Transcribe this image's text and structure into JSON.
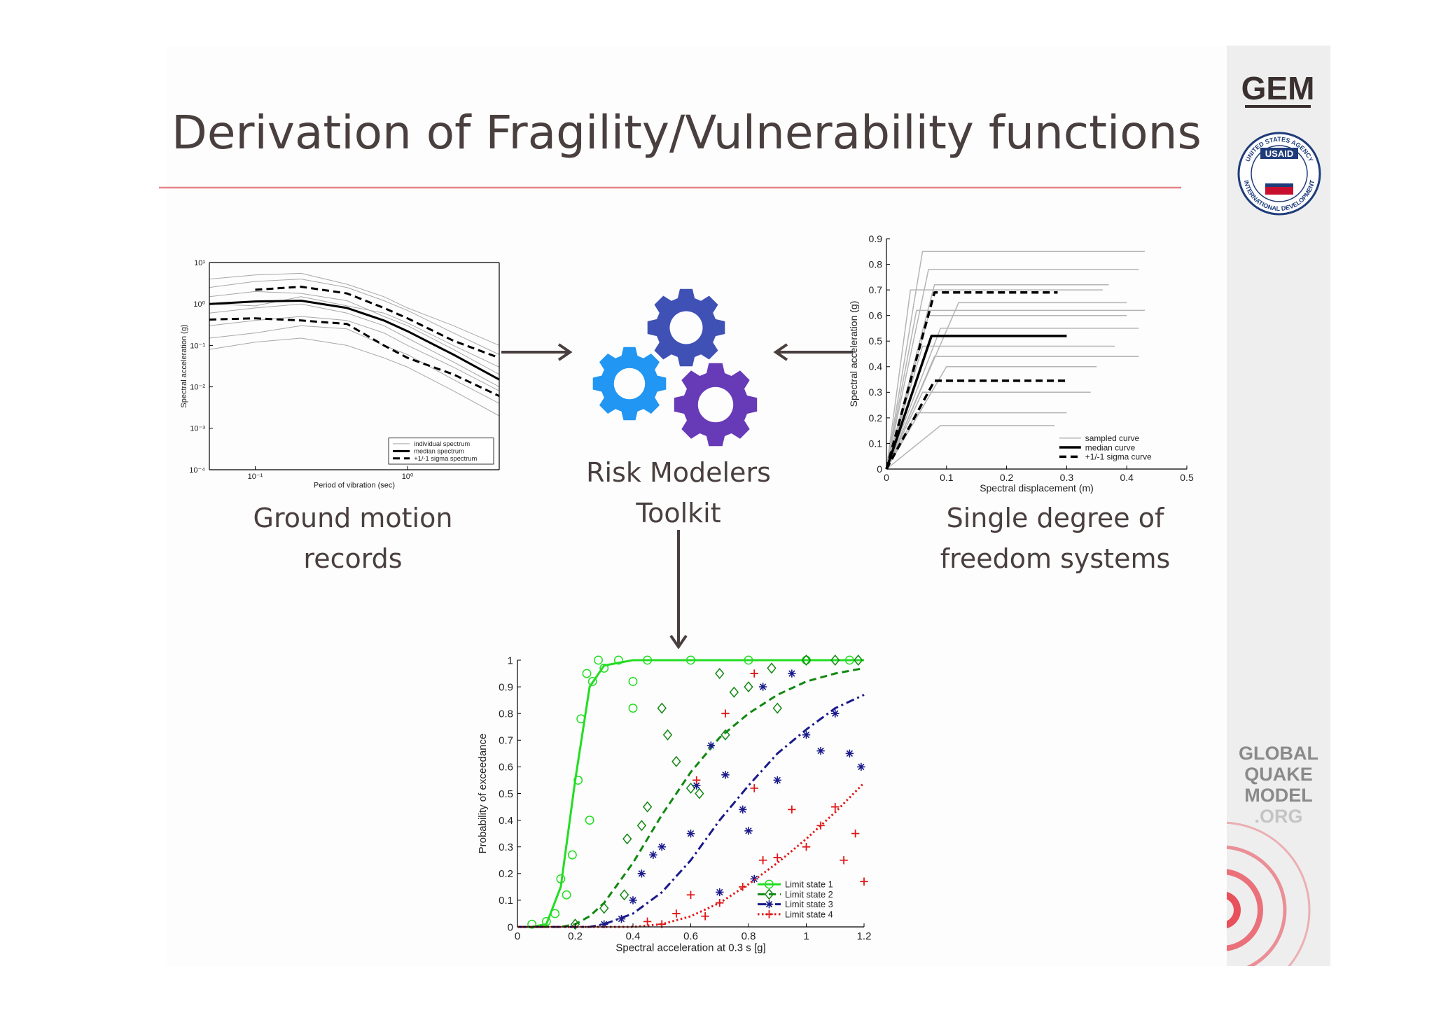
{
  "header": {
    "title": "Derivation of Fragility/Vulnerability functions"
  },
  "sidebar": {
    "logo": "GEM",
    "usaid_top": "UNITED STATES AGENCY",
    "usaid_name": "USAID",
    "usaid_bottom": "INTERNATIONAL DEVELOPMENT",
    "org_lines": [
      "GLOBAL",
      "QUAKE",
      "MODEL",
      ".ORG"
    ]
  },
  "panels": {
    "ground_motion": [
      "Ground motion",
      "records"
    ],
    "toolkit": [
      "Risk Modelers",
      "Toolkit"
    ],
    "sdof": [
      "Single degree of",
      "freedom systems"
    ]
  },
  "chart_data": [
    {
      "type": "line",
      "xscale": "log",
      "yscale": "log",
      "box": true,
      "legend": "lower right",
      "x_label": "Period of vibration (sec)",
      "y_label": "Spectral acceleration (g)",
      "xlim": [
        0.05,
        4
      ],
      "ylim": [
        0.0001,
        10
      ],
      "xticks": [
        {
          "value": 0.1,
          "label": "10⁻¹"
        },
        {
          "value": 1,
          "label": "10⁰"
        }
      ],
      "yticks": [
        {
          "value": 0.0001,
          "label": "10⁻⁴"
        },
        {
          "value": 0.001,
          "label": "10⁻³"
        },
        {
          "value": 0.01,
          "label": "10⁻²"
        },
        {
          "value": 0.1,
          "label": "10⁻¹"
        },
        {
          "value": 1,
          "label": "10⁰"
        },
        {
          "value": 10,
          "label": "10¹"
        }
      ],
      "x": [
        0.05,
        0.1,
        0.2,
        0.4,
        0.7,
        1,
        2,
        4
      ],
      "series": [
        {
          "name": "individual spectrum",
          "color": "#a8a8a8",
          "dash": "solid",
          "linewidth": 1,
          "values": [
            2.5,
            3.5,
            4,
            2.5,
            1.2,
            0.7,
            0.2,
            0.06
          ]
        },
        {
          "name": "individual spectrum",
          "color": "#a8a8a8",
          "dash": "solid",
          "linewidth": 1,
          "values": [
            0.3,
            0.4,
            0.5,
            0.4,
            0.2,
            0.1,
            0.03,
            0.008
          ]
        },
        {
          "name": "individual spectrum",
          "color": "#a8a8a8",
          "dash": "solid",
          "linewidth": 1,
          "values": [
            1.5,
            2,
            1.8,
            1.2,
            0.5,
            0.3,
            0.08,
            0.02
          ]
        },
        {
          "name": "individual spectrum",
          "color": "#a8a8a8",
          "dash": "solid",
          "linewidth": 1,
          "values": [
            0.08,
            0.12,
            0.15,
            0.1,
            0.05,
            0.03,
            0.008,
            0.002
          ]
        },
        {
          "name": "individual spectrum",
          "color": "#a8a8a8",
          "dash": "solid",
          "linewidth": 1,
          "values": [
            0.6,
            0.8,
            1.0,
            0.6,
            0.3,
            0.15,
            0.04,
            0.01
          ]
        },
        {
          "name": "individual spectrum",
          "color": "#a8a8a8",
          "dash": "solid",
          "linewidth": 1,
          "values": [
            4,
            5,
            5.5,
            3,
            1.5,
            0.8,
            0.3,
            0.1
          ]
        },
        {
          "name": "individual spectrum",
          "color": "#a8a8a8",
          "dash": "solid",
          "linewidth": 1,
          "values": [
            0.15,
            0.2,
            0.3,
            0.25,
            0.1,
            0.06,
            0.015,
            0.004
          ]
        },
        {
          "name": "individual spectrum",
          "color": "#a8a8a8",
          "dash": "solid",
          "linewidth": 1,
          "values": [
            1,
            0.9,
            1.5,
            0.9,
            0.6,
            0.35,
            0.1,
            0.03
          ]
        },
        {
          "name": "median spectrum",
          "color": "#000000",
          "dash": "solid",
          "linewidth": 3,
          "values": [
            1.0,
            1.15,
            1.2,
            0.8,
            0.4,
            0.22,
            0.06,
            0.015
          ]
        },
        {
          "name": "+1/-1 sigma spectrum",
          "color": "#000000",
          "dash": "dashed",
          "linewidth": 3,
          "values": [
            null,
            2.2,
            2.6,
            1.8,
            0.8,
            0.45,
            0.13,
            0.05
          ]
        },
        {
          "name": "+1/-1 sigma spectrum",
          "color": "#000000",
          "dash": "dashed",
          "linewidth": 3,
          "values": [
            0.42,
            0.45,
            0.4,
            0.33,
            0.1,
            0.05,
            0.02,
            0.006
          ]
        }
      ]
    },
    {
      "type": "line",
      "box": false,
      "legend": "lower right",
      "x_label": "Spectral displacement (m)",
      "y_label": "Spectral acceleration (g)",
      "xlim": [
        0,
        0.5
      ],
      "ylim": [
        0,
        0.9
      ],
      "xticks": [
        0,
        0.1,
        0.2,
        0.3,
        0.4,
        0.5
      ],
      "yticks": [
        0,
        0.1,
        0.2,
        0.3,
        0.4,
        0.5,
        0.6,
        0.7,
        0.8,
        0.9
      ],
      "series": [
        {
          "name": "sampled curve",
          "color": "#b4b4b4",
          "dash": "solid",
          "linewidth": 1.5,
          "x": [
            0,
            0.06,
            0.43
          ],
          "values": [
            0,
            0.85,
            0.85
          ]
        },
        {
          "name": "sampled curve",
          "color": "#b4b4b4",
          "dash": "solid",
          "linewidth": 1.5,
          "x": [
            0,
            0.07,
            0.42
          ],
          "values": [
            0,
            0.78,
            0.78
          ]
        },
        {
          "name": "sampled curve",
          "color": "#b4b4b4",
          "dash": "solid",
          "linewidth": 1.5,
          "x": [
            0,
            0.08,
            0.37
          ],
          "values": [
            0,
            0.72,
            0.72
          ]
        },
        {
          "name": "sampled curve",
          "color": "#b4b4b4",
          "dash": "solid",
          "linewidth": 1.5,
          "x": [
            0,
            0.05,
            0.43
          ],
          "values": [
            0,
            0.62,
            0.62
          ]
        },
        {
          "name": "sampled curve",
          "color": "#b4b4b4",
          "dash": "solid",
          "linewidth": 1.5,
          "x": [
            0,
            0.07,
            0.4
          ],
          "values": [
            0,
            0.6,
            0.6
          ]
        },
        {
          "name": "sampled curve",
          "color": "#b4b4b4",
          "dash": "solid",
          "linewidth": 1.5,
          "x": [
            0,
            0.09,
            0.42
          ],
          "values": [
            0,
            0.55,
            0.55
          ]
        },
        {
          "name": "sampled curve",
          "color": "#b4b4b4",
          "dash": "solid",
          "linewidth": 1.5,
          "x": [
            0,
            0.06,
            0.38
          ],
          "values": [
            0,
            0.48,
            0.48
          ]
        },
        {
          "name": "sampled curve",
          "color": "#b4b4b4",
          "dash": "solid",
          "linewidth": 1.5,
          "x": [
            0,
            0.08,
            0.42
          ],
          "values": [
            0,
            0.44,
            0.44
          ]
        },
        {
          "name": "sampled curve",
          "color": "#b4b4b4",
          "dash": "solid",
          "linewidth": 1.5,
          "x": [
            0,
            0.1,
            0.35
          ],
          "values": [
            0,
            0.4,
            0.4
          ]
        },
        {
          "name": "sampled curve",
          "color": "#b4b4b4",
          "dash": "solid",
          "linewidth": 1.5,
          "x": [
            0,
            0.06,
            0.34
          ],
          "values": [
            0,
            0.3,
            0.3
          ]
        },
        {
          "name": "sampled curve",
          "color": "#b4b4b4",
          "dash": "solid",
          "linewidth": 1.5,
          "x": [
            0,
            0.05,
            0.3
          ],
          "values": [
            0,
            0.22,
            0.22
          ]
        },
        {
          "name": "sampled curve",
          "color": "#b4b4b4",
          "dash": "solid",
          "linewidth": 1.5,
          "x": [
            0,
            0.09,
            0.28
          ],
          "values": [
            0,
            0.17,
            0.17
          ]
        },
        {
          "name": "sampled curve",
          "color": "#b4b4b4",
          "dash": "solid",
          "linewidth": 1.5,
          "x": [
            0,
            0.12,
            0.4
          ],
          "values": [
            0,
            0.65,
            0.65
          ]
        },
        {
          "name": "sampled curve",
          "color": "#b4b4b4",
          "dash": "solid",
          "linewidth": 1.5,
          "x": [
            0,
            0.04,
            0.36
          ],
          "values": [
            0,
            0.7,
            0.7
          ]
        },
        {
          "name": "median curve",
          "color": "#000000",
          "dash": "solid",
          "linewidth": 3.5,
          "x": [
            0,
            0.075,
            0.3
          ],
          "values": [
            0,
            0.52,
            0.52
          ]
        },
        {
          "name": "+1/-1 sigma curve",
          "color": "#000000",
          "dash": "dashed",
          "linewidth": 3.5,
          "x": [
            0,
            0.08,
            0.285
          ],
          "values": [
            0,
            0.69,
            0.69
          ]
        },
        {
          "name": "+1/-1 sigma curve",
          "color": "#000000",
          "dash": "dashed",
          "linewidth": 3.5,
          "x": [
            0,
            0.08,
            0.3
          ],
          "values": [
            0,
            0.345,
            0.345
          ]
        }
      ]
    },
    {
      "type": "line",
      "box": false,
      "legend": "lower right",
      "x_label": "Spectral acceleration at 0.3 s [g]",
      "y_label": "Probability of exceedance",
      "xlim": [
        0,
        1.2
      ],
      "ylim": [
        0,
        1
      ],
      "xticks": [
        0,
        0.2,
        0.4,
        0.6,
        0.8,
        1,
        1.2
      ],
      "yticks": [
        0,
        0.1,
        0.2,
        0.3,
        0.4,
        0.5,
        0.6,
        0.7,
        0.8,
        0.9,
        1
      ],
      "x": [
        0,
        0.05,
        0.1,
        0.15,
        0.2,
        0.25,
        0.3,
        0.4,
        0.5,
        0.6,
        0.7,
        0.8,
        0.9,
        1.0,
        1.1,
        1.2
      ],
      "series": [
        {
          "name": "Limit state 1",
          "color": "#22dd22",
          "dash": "solid",
          "linewidth": 3,
          "marker": "circle",
          "values": [
            0,
            0,
            0.01,
            0.15,
            0.55,
            0.9,
            0.98,
            1,
            1,
            1,
            1,
            1,
            1,
            1,
            1,
            1
          ],
          "scatter_x": [
            0.05,
            0.1,
            0.13,
            0.15,
            0.17,
            0.19,
            0.21,
            0.22,
            0.24,
            0.26,
            0.28,
            0.3,
            0.35,
            0.45,
            0.6,
            0.8,
            1.0,
            1.15,
            0.4,
            0.4,
            0.25
          ],
          "scatter_y": [
            0.01,
            0.02,
            0.05,
            0.18,
            0.12,
            0.27,
            0.55,
            0.78,
            0.95,
            0.92,
            1,
            0.97,
            1,
            1,
            1,
            1,
            1,
            1,
            0.92,
            0.82,
            0.4
          ]
        },
        {
          "name": "Limit state 2",
          "color": "#118811",
          "dash": "dashed",
          "linewidth": 3,
          "marker": "diamond",
          "values": [
            0,
            0,
            0,
            0,
            0.01,
            0.04,
            0.09,
            0.24,
            0.42,
            0.58,
            0.71,
            0.8,
            0.87,
            0.92,
            0.95,
            0.97
          ],
          "scatter_x": [
            0.2,
            0.3,
            0.37,
            0.38,
            0.43,
            0.45,
            0.5,
            0.52,
            0.55,
            0.6,
            0.63,
            0.7,
            0.75,
            0.8,
            0.88,
            1.0,
            1.1,
            1.18,
            0.9,
            0.72
          ],
          "scatter_y": [
            0.01,
            0.07,
            0.12,
            0.33,
            0.38,
            0.45,
            0.82,
            0.72,
            0.62,
            0.52,
            0.5,
            0.95,
            0.88,
            0.9,
            0.97,
            1,
            1,
            1,
            0.82,
            0.72
          ]
        },
        {
          "name": "Limit state 3",
          "color": "#1a1a8c",
          "dash": "dashdot",
          "linewidth": 3,
          "marker": "asterisk",
          "values": [
            0,
            0,
            0,
            0,
            0,
            0,
            0.01,
            0.05,
            0.13,
            0.25,
            0.4,
            0.53,
            0.65,
            0.74,
            0.82,
            0.87
          ],
          "scatter_x": [
            0.3,
            0.36,
            0.4,
            0.43,
            0.47,
            0.5,
            0.6,
            0.62,
            0.67,
            0.72,
            0.78,
            0.8,
            0.85,
            0.9,
            0.95,
            1.0,
            1.05,
            1.1,
            1.15,
            1.19,
            0.7,
            0.82
          ],
          "scatter_y": [
            0.01,
            0.03,
            0.1,
            0.2,
            0.27,
            0.3,
            0.35,
            0.53,
            0.68,
            0.57,
            0.44,
            0.36,
            0.9,
            0.55,
            0.95,
            0.72,
            0.66,
            0.8,
            0.65,
            0.6,
            0.13,
            0.18
          ]
        },
        {
          "name": "Limit state 4",
          "color": "#e01818",
          "dash": "dotted",
          "linewidth": 3,
          "marker": "plus",
          "values": [
            0,
            0,
            0,
            0,
            0,
            0,
            0,
            0,
            0.01,
            0.04,
            0.09,
            0.16,
            0.24,
            0.33,
            0.43,
            0.54
          ],
          "scatter_x": [
            0.45,
            0.5,
            0.55,
            0.6,
            0.65,
            0.7,
            0.72,
            0.78,
            0.82,
            0.85,
            0.9,
            0.95,
            1.0,
            1.05,
            1.1,
            1.13,
            1.17,
            1.2,
            0.62,
            0.82
          ],
          "scatter_y": [
            0.02,
            0.01,
            0.05,
            0.12,
            0.04,
            0.09,
            0.8,
            0.15,
            0.52,
            0.25,
            0.26,
            0.44,
            0.3,
            0.38,
            0.45,
            0.25,
            0.35,
            0.17,
            0.55,
            0.95
          ]
        }
      ]
    }
  ]
}
